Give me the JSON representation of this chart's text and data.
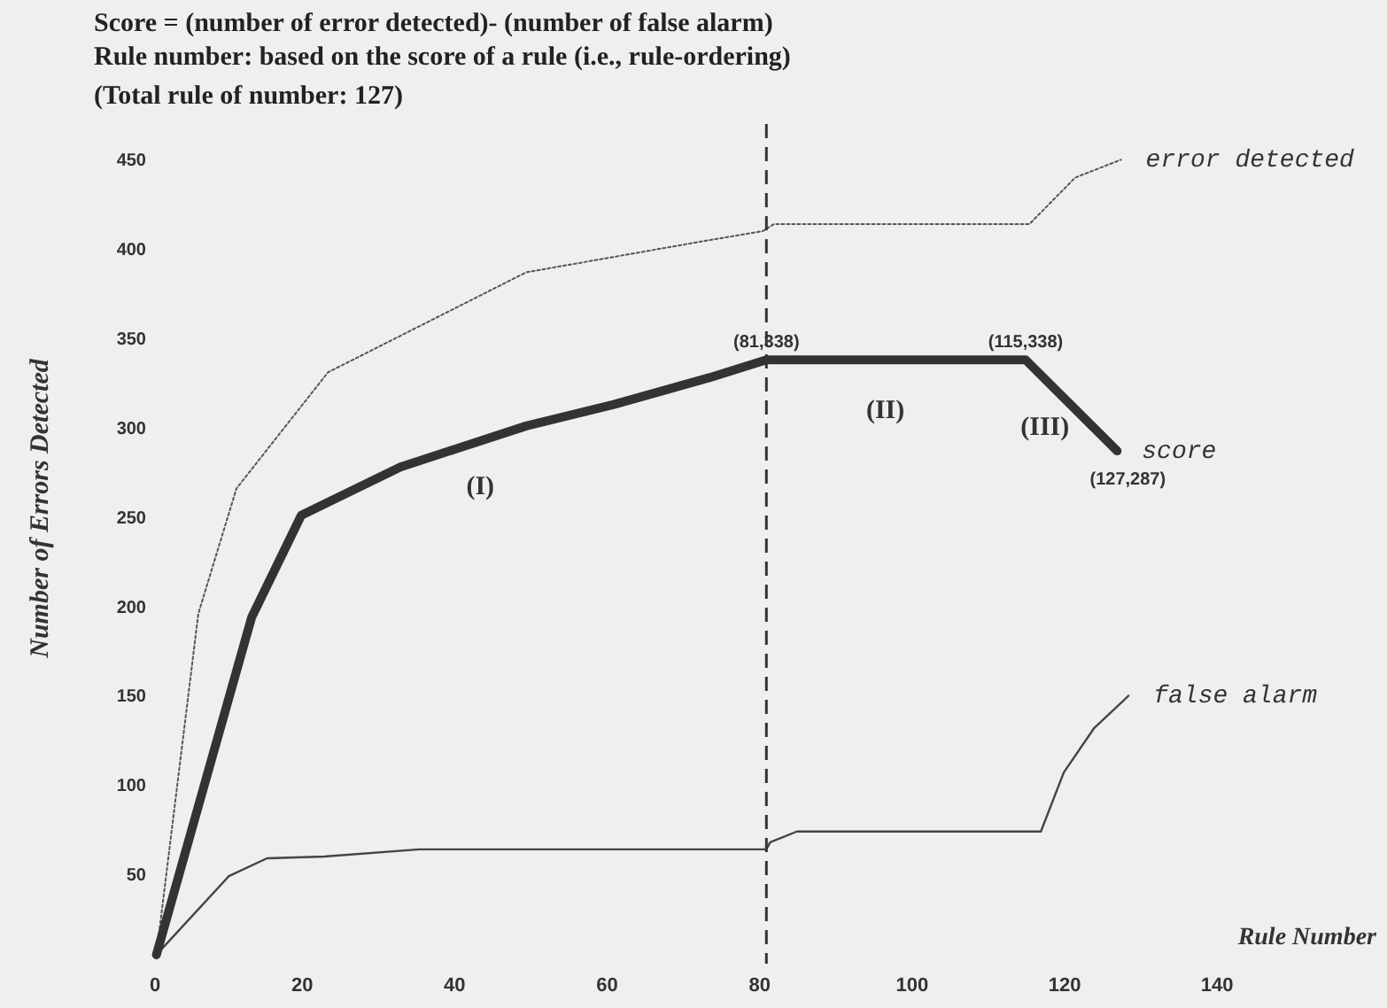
{
  "chart_data": {
    "type": "line",
    "title": "Score = (number of error detected)- (number of false alarm)",
    "subtitle": "Rule number: based on the score of a  rule (i.e., rule-ordering)\n(Total rule of number: 127)",
    "xlabel": "Rule Number",
    "ylabel": "Number of Errors Detected",
    "xlim": [
      0,
      161
    ],
    "ylim": [
      0,
      470
    ],
    "xticks": [
      0,
      20,
      40,
      60,
      80,
      100,
      120,
      140
    ],
    "yticks": [
      50,
      100,
      150,
      200,
      250,
      300,
      350,
      400,
      450
    ],
    "grid": false,
    "legend": false,
    "series": [
      {
        "name": "error detected",
        "color": "#555555",
        "line_style": "dotted",
        "x": [
          1,
          6.5,
          11.5,
          23.5,
          49.5,
          73.5,
          80.5,
          82,
          115.5,
          121.5,
          127.5
        ],
        "values": [
          5,
          196,
          266,
          331,
          387,
          405,
          410,
          414,
          414,
          440,
          450
        ]
      },
      {
        "name": "false alarm",
        "color": "#444444",
        "line_style": "solid",
        "x": [
          1,
          10.5,
          15.5,
          23,
          35.5,
          81,
          81.5,
          85,
          117,
          120,
          124,
          128.5
        ],
        "values": [
          5,
          49,
          59,
          60,
          64,
          64,
          68,
          74,
          74,
          107,
          132,
          150
        ]
      },
      {
        "name": "score",
        "color": "#333333",
        "line_style": "solid",
        "x": [
          1,
          13.5,
          20,
          33,
          49.5,
          61,
          73.5,
          81,
          115,
          127
        ],
        "values": [
          5,
          194,
          251,
          278,
          301,
          313,
          328,
          338,
          338,
          287
        ]
      }
    ],
    "ref_lines": [
      {
        "axis": "x",
        "value": 81,
        "label": null,
        "color": "#333333",
        "line_style": "dashed"
      }
    ],
    "annotations": [
      {
        "text": "(81,338)",
        "x": 81,
        "y": 338
      },
      {
        "text": "(115,338)",
        "x": 115,
        "y": 338
      },
      {
        "text": "(127,287)",
        "x": 127,
        "y": 287
      },
      "(I)",
      "(II)",
      "(III)"
    ]
  }
}
